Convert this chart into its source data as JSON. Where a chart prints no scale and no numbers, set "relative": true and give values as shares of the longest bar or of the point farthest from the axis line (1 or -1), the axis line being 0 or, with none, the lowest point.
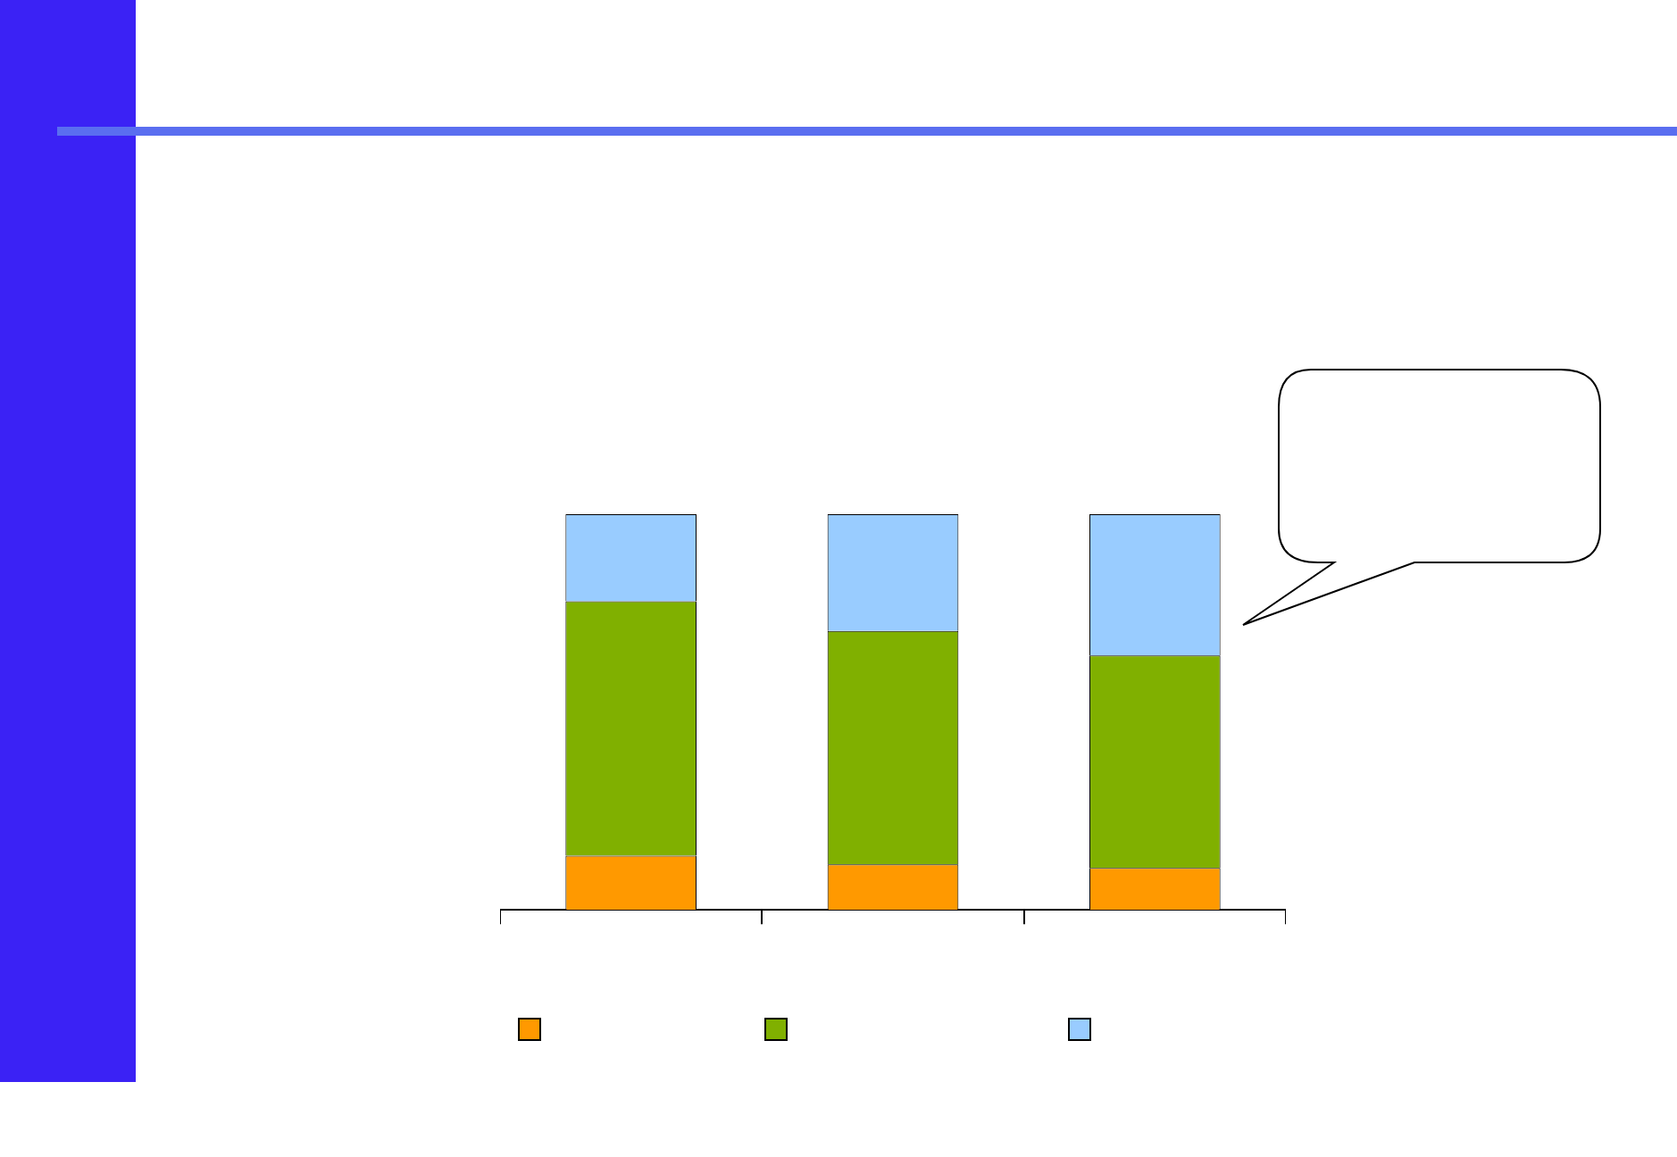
{
  "chart_data": {
    "type": "bar",
    "stacked": true,
    "relative": true,
    "categories": [
      null,
      null,
      null
    ],
    "series": [
      {
        "color": "#ff9900",
        "values": [
          0.137,
          0.115,
          0.106
        ]
      },
      {
        "color": "#80b000",
        "values": [
          0.643,
          0.59,
          0.537
        ]
      },
      {
        "color": "#99ccff",
        "values": [
          0.22,
          0.295,
          0.357
        ]
      }
    ],
    "grid": false
  }
}
